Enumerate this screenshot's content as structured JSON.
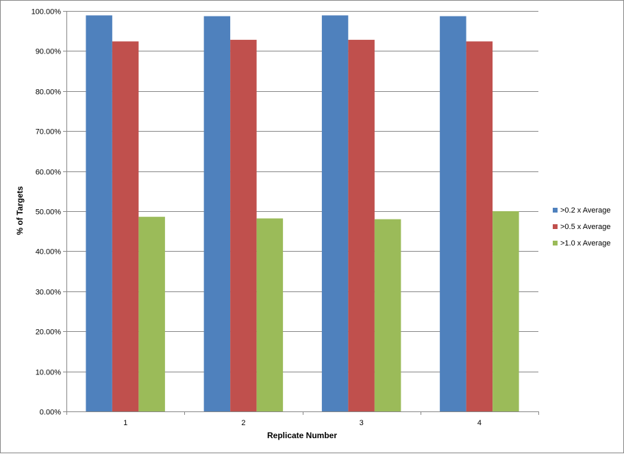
{
  "chart_data": {
    "type": "bar",
    "title": "",
    "xlabel": "Replicate Number",
    "ylabel": "% of Targets",
    "categories": [
      "1",
      "2",
      "3",
      "4"
    ],
    "ylim": [
      0,
      100
    ],
    "y_ticks": [
      0,
      10,
      20,
      30,
      40,
      50,
      60,
      70,
      80,
      90,
      100
    ],
    "y_tick_labels": [
      "0.00%",
      "10.00%",
      "20.00%",
      "30.00%",
      "40.00%",
      "50.00%",
      "60.00%",
      "70.00%",
      "80.00%",
      "90.00%",
      "100.00%"
    ],
    "grid": true,
    "legend_position": "right",
    "series": [
      {
        "name": ">0.2 x Average",
        "color": "#4F81BD",
        "values": [
          98.9,
          98.7,
          98.9,
          98.7
        ]
      },
      {
        "name": ">0.5 x Average",
        "color": "#C0504D",
        "values": [
          92.4,
          92.8,
          92.8,
          92.4
        ]
      },
      {
        "name": ">1.0 x Average",
        "color": "#9BBB59",
        "values": [
          48.6,
          48.2,
          48.0,
          50.0
        ]
      }
    ]
  }
}
